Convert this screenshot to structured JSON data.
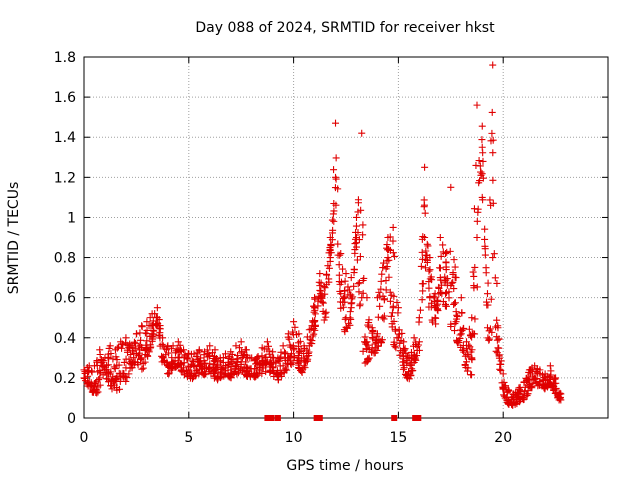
{
  "chart_data": {
    "type": "scatter",
    "title": "Day 088 of 2024, SRMTID for receiver hkst",
    "xlabel": "GPS time / hours",
    "ylabel": "SRMTID / TECUs",
    "xlim": [
      0,
      25
    ],
    "ylim": [
      0,
      1.8
    ],
    "x_ticks": [
      0,
      5,
      10,
      15,
      20
    ],
    "x_tick_labels": [
      "0",
      "5",
      "10",
      "15",
      "20"
    ],
    "y_ticks": [
      0,
      0.2,
      0.4,
      0.6,
      0.8,
      1,
      1.2,
      1.4,
      1.6,
      1.8
    ],
    "y_tick_labels": [
      "0",
      "0.2",
      "0.4",
      "0.6",
      "0.8",
      "1",
      "1.2",
      "1.4",
      "1.6",
      "1.8"
    ],
    "grid": true,
    "marker": "plus",
    "series_color": "#e00000",
    "series": [
      {
        "name": "SRMTID",
        "x": [
          0.0,
          0.25,
          0.5,
          0.75,
          1.0,
          1.25,
          1.5,
          1.75,
          2.0,
          2.25,
          2.5,
          2.75,
          3.0,
          3.25,
          3.5,
          3.75,
          4.0,
          4.25,
          4.5,
          4.75,
          5.0,
          5.25,
          5.5,
          5.75,
          6.0,
          6.25,
          6.5,
          6.75,
          7.0,
          7.25,
          7.5,
          7.75,
          8.0,
          8.25,
          8.5,
          8.75,
          9.0,
          9.25,
          9.5,
          9.75,
          10.0,
          10.25,
          10.5,
          10.75,
          11.0,
          11.25,
          11.5,
          11.75,
          12.0,
          12.25,
          12.5,
          12.75,
          13.0,
          13.25,
          13.5,
          13.75,
          14.0,
          14.25,
          14.5,
          14.75,
          15.0,
          15.25,
          15.5,
          15.75,
          16.0,
          16.25,
          16.5,
          16.75,
          17.0,
          17.25,
          17.5,
          17.75,
          18.0,
          18.25,
          18.5,
          18.75,
          19.0,
          19.25,
          19.5,
          19.75,
          20.0,
          20.25,
          20.5,
          20.75,
          21.0,
          21.25,
          21.5,
          21.75,
          22.0,
          22.25,
          22.5,
          22.75
        ],
        "y": [
          0.2,
          0.18,
          0.16,
          0.2,
          0.24,
          0.22,
          0.19,
          0.22,
          0.25,
          0.28,
          0.32,
          0.3,
          0.35,
          0.42,
          0.5,
          0.3,
          0.26,
          0.28,
          0.3,
          0.25,
          0.24,
          0.22,
          0.26,
          0.25,
          0.27,
          0.24,
          0.22,
          0.25,
          0.24,
          0.26,
          0.28,
          0.25,
          0.22,
          0.24,
          0.26,
          0.28,
          0.25,
          0.22,
          0.26,
          0.3,
          0.34,
          0.3,
          0.26,
          0.36,
          0.48,
          0.66,
          0.52,
          0.8,
          1.2,
          0.62,
          0.5,
          0.55,
          0.9,
          0.6,
          0.38,
          0.35,
          0.42,
          0.5,
          0.8,
          0.55,
          0.4,
          0.28,
          0.22,
          0.3,
          0.38,
          0.9,
          0.6,
          0.5,
          0.7,
          0.62,
          0.66,
          0.48,
          0.42,
          0.28,
          0.3,
          0.9,
          1.35,
          0.45,
          0.8,
          0.35,
          0.15,
          0.09,
          0.08,
          0.1,
          0.12,
          0.16,
          0.2,
          0.18,
          0.16,
          0.2,
          0.14,
          0.09
        ],
        "upper_envelope_y": [
          0.24,
          0.26,
          0.26,
          0.34,
          0.3,
          0.36,
          0.34,
          0.38,
          0.4,
          0.36,
          0.42,
          0.46,
          0.48,
          0.52,
          0.55,
          0.4,
          0.36,
          0.36,
          0.38,
          0.34,
          0.32,
          0.32,
          0.34,
          0.33,
          0.36,
          0.34,
          0.3,
          0.32,
          0.33,
          0.36,
          0.38,
          0.34,
          0.3,
          0.3,
          0.35,
          0.38,
          0.33,
          0.3,
          0.36,
          0.42,
          0.48,
          0.42,
          0.36,
          0.44,
          0.6,
          0.72,
          0.65,
          0.9,
          1.47,
          0.82,
          0.72,
          0.7,
          1.0,
          1.42,
          0.6,
          0.45,
          0.6,
          0.75,
          0.9,
          0.95,
          0.55,
          0.38,
          0.3,
          0.4,
          0.5,
          1.25,
          0.8,
          0.62,
          0.9,
          0.82,
          1.15,
          0.7,
          0.6,
          0.38,
          0.5,
          1.56,
          1.1,
          0.62,
          1.76,
          0.45,
          0.22,
          0.14,
          0.12,
          0.15,
          0.18,
          0.24,
          0.26,
          0.24,
          0.22,
          0.26,
          0.2,
          0.12
        ]
      }
    ],
    "gap_markers_x": [
      8.75,
      8.95,
      9.25,
      11.1,
      11.25,
      14.8,
      15.8,
      15.95
    ]
  }
}
